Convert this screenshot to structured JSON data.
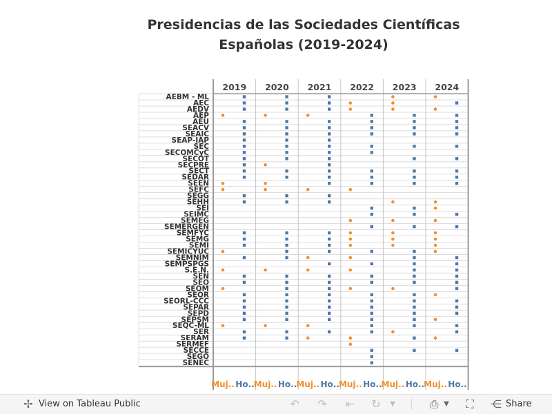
{
  "chart_data": {
    "type": "scatter",
    "title_lines": [
      "Presidencias de las Sociedades Científicas",
      "Españolas (2019-2024)"
    ],
    "years": [
      "2019",
      "2020",
      "2021",
      "2022",
      "2023",
      "2024"
    ],
    "sub_columns": [
      "Muj..",
      "Ho.."
    ],
    "colors": {
      "mujer": "#f28e2b",
      "hombre": "#4e79a7",
      "grid": "#dcdcdc",
      "panel_border": "#9b9b9b"
    },
    "societies": [
      "AEBM - ML",
      "AEC",
      "AEDV",
      "AEP",
      "AEU",
      "SEACV",
      "SEAIC",
      "SEAP-IAP",
      "SEC",
      "SECOMCyC",
      "SECOT",
      "SECPRE",
      "SECT",
      "SEDAR",
      "SEEN",
      "SEFC",
      "SEGG",
      "SEHH",
      "SEI",
      "SEIMC",
      "SEMEG",
      "SEMERGEN",
      "SEMFYC",
      "SEMG",
      "SEMI",
      "SEMICYUC",
      "SEMNIM",
      "SEMPSPGS",
      "S.E.N.",
      "SEN",
      "SEO",
      "SEOM",
      "SEOR",
      "SEORL-CCC",
      "SEPAR",
      "SEPD",
      "SEPSM",
      "SEQC-ML",
      "SER",
      "SERAM",
      "SERMEF",
      "SECCE",
      "SEGO",
      "SENEC"
    ],
    "presidencies": [
      [
        "H",
        "H",
        "H",
        "",
        "M",
        "M"
      ],
      [
        "H",
        "H",
        "H",
        "M",
        "M",
        "H"
      ],
      [
        "H",
        "H",
        "H",
        "M",
        "M",
        "M"
      ],
      [
        "M",
        "M",
        "M",
        "H",
        "H",
        "H"
      ],
      [
        "H",
        "H",
        "H",
        "H",
        "H",
        "H"
      ],
      [
        "H",
        "H",
        "H",
        "H",
        "H",
        "H"
      ],
      [
        "H",
        "H",
        "H",
        "H",
        "H",
        "H"
      ],
      [
        "H",
        "H",
        "H",
        "",
        "",
        ""
      ],
      [
        "H",
        "H",
        "H",
        "H",
        "H",
        "H"
      ],
      [
        "H",
        "H",
        "H",
        "H",
        "",
        ""
      ],
      [
        "H",
        "H",
        "H",
        "",
        "H",
        "H"
      ],
      [
        "H",
        "M",
        "H",
        "",
        "",
        ""
      ],
      [
        "H",
        "H",
        "H",
        "H",
        "H",
        "H"
      ],
      [
        "H",
        "H",
        "H",
        "H",
        "H",
        "H"
      ],
      [
        "M",
        "M",
        "H",
        "H",
        "H",
        "H"
      ],
      [
        "M",
        "M",
        "M",
        "M",
        "",
        ""
      ],
      [
        "H",
        "H",
        "H",
        "",
        "",
        ""
      ],
      [
        "H",
        "H",
        "H",
        "",
        "M",
        "M"
      ],
      [
        "",
        "",
        "",
        "H",
        "H",
        "M"
      ],
      [
        "",
        "",
        "",
        "H",
        "H",
        "H"
      ],
      [
        "",
        "",
        "",
        "M",
        "M",
        "M"
      ],
      [
        "",
        "",
        "",
        "H",
        "H",
        "H"
      ],
      [
        "H",
        "H",
        "H",
        "M",
        "M",
        "M"
      ],
      [
        "H",
        "H",
        "H",
        "M",
        "M",
        "M"
      ],
      [
        "H",
        "H",
        "H",
        "M",
        "M",
        "M"
      ],
      [
        "M",
        "H",
        "H",
        "H",
        "H",
        "M"
      ],
      [
        "H",
        "H",
        "M",
        "M",
        "H",
        "H"
      ],
      [
        "",
        "",
        "H",
        "H",
        "H",
        "H"
      ],
      [
        "M",
        "M",
        "M",
        "M",
        "H",
        "H"
      ],
      [
        "H",
        "H",
        "H",
        "H",
        "H",
        "H"
      ],
      [
        "H",
        "H",
        "H",
        "H",
        "H",
        "H"
      ],
      [
        "M",
        "H",
        "H",
        "M",
        "M",
        "H"
      ],
      [
        "H",
        "H",
        "H",
        "H",
        "H",
        "M"
      ],
      [
        "H",
        "H",
        "H",
        "H",
        "H",
        "H"
      ],
      [
        "H",
        "H",
        "H",
        "H",
        "H",
        "H"
      ],
      [
        "H",
        "H",
        "H",
        "H",
        "H",
        "H"
      ],
      [
        "H",
        "H",
        "H",
        "H",
        "H",
        "M"
      ],
      [
        "M",
        "M",
        "M",
        "H",
        "H",
        "H"
      ],
      [
        "H",
        "H",
        "H",
        "H",
        "M",
        "H"
      ],
      [
        "H",
        "H",
        "M",
        "M",
        "H",
        "M"
      ],
      [
        "",
        "",
        "",
        "M",
        "",
        ""
      ],
      [
        "",
        "",
        "",
        "H",
        "H",
        "H"
      ],
      [
        "",
        "",
        "",
        "H",
        "",
        ""
      ],
      [
        "",
        "",
        "",
        "H",
        "",
        ""
      ]
    ]
  },
  "footer": {
    "view_label": "View on Tableau Public",
    "share_label": "Share",
    "icons": [
      "tableau-logo-icon",
      "undo-icon",
      "redo-icon",
      "revert-icon",
      "refresh-icon",
      "refresh-dropdown-icon",
      "download-icon",
      "download-dropdown-icon",
      "fullscreen-icon",
      "share-icon"
    ]
  }
}
